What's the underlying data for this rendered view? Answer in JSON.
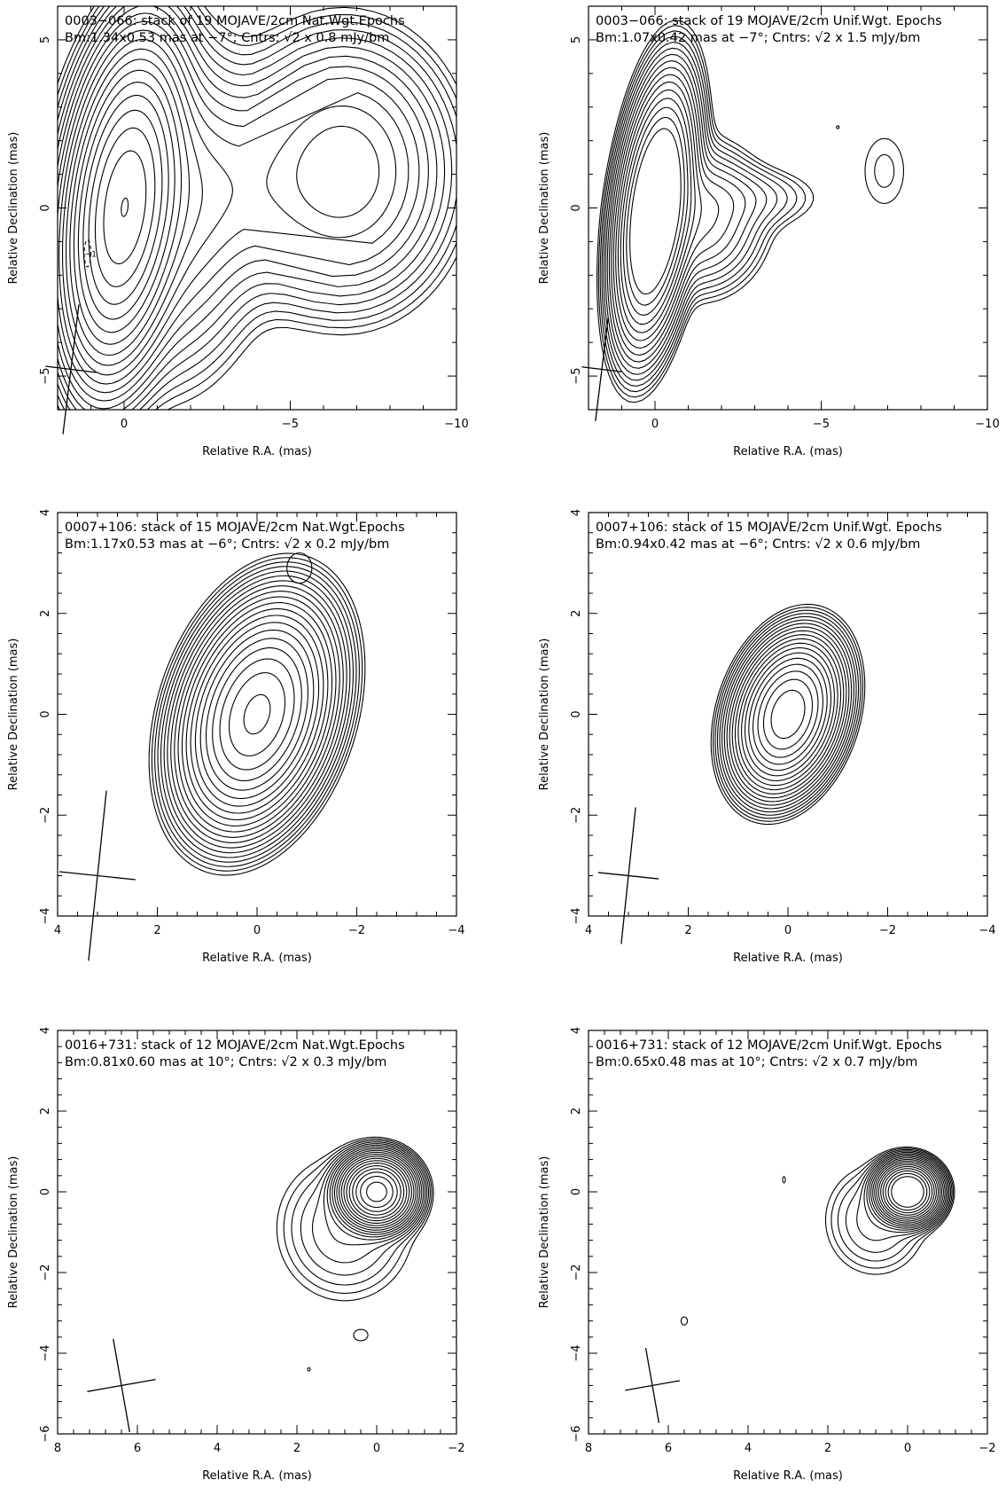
{
  "figure": {
    "panels": [
      {
        "id": "p1",
        "title_line1": "0003−066: stack of 19 MOJAVE/2cm Nat.Wgt.Epochs",
        "title_line2": "Bm:1.34x0.53 mas at −7°; Cntrs: √2 x 0.8 mJy/bm"
      },
      {
        "id": "p2",
        "title_line1": "0003−066: stack of 19 MOJAVE/2cm Unif.Wgt. Epochs",
        "title_line2": "Bm:1.07x0.42 mas at −7°; Cntrs: √2 x 1.5 mJy/bm"
      },
      {
        "id": "p3",
        "title_line1": "0007+106: stack of 15 MOJAVE/2cm Nat.Wgt.Epochs",
        "title_line2": "Bm:1.17x0.53 mas at −6°; Cntrs: √2 x 0.2 mJy/bm"
      },
      {
        "id": "p4",
        "title_line1": "0007+106: stack of 15 MOJAVE/2cm Unif.Wgt. Epochs",
        "title_line2": "Bm:0.94x0.42 mas at −6°; Cntrs: √2 x 0.6 mJy/bm"
      },
      {
        "id": "p5",
        "title_line1": "0016+731: stack of 12 MOJAVE/2cm Nat.Wgt.Epochs",
        "title_line2": "Bm:0.81x0.60 mas at 10°; Cntrs: √2 x 0.3 mJy/bm"
      },
      {
        "id": "p6",
        "title_line1": "0016+731: stack of 12 MOJAVE/2cm Unif.Wgt. Epochs",
        "title_line2": "Bm:0.65x0.48 mas at 10°; Cntrs: √2 x 0.7 mJy/bm"
      }
    ]
  },
  "chart_data": [
    {
      "type": "contour",
      "title": "0003−066: stack of 19 MOJAVE/2cm Nat.Wgt.Epochs",
      "subtitle": "Bm:1.34x0.53 mas at −7°; Cntrs: √2 x 0.8 mJy/bm",
      "xlabel": "Relative R.A. (mas)",
      "ylabel": "Relative Declination (mas)",
      "xlim": [
        2,
        -10
      ],
      "ylim": [
        -6,
        6
      ],
      "xticks": [
        0,
        -5,
        -10
      ],
      "xtick_labels": [
        "0",
        "−5",
        "−10"
      ],
      "yticks": [
        -5,
        0,
        5
      ],
      "ytick_labels": [
        "−5",
        "0",
        "5"
      ],
      "beam": {
        "major_mas": 1.34,
        "minor_mas": 0.53,
        "pa_deg": -7,
        "x": 1.6,
        "y": -4.8
      },
      "contour_base_mJy_per_beam": 0.8,
      "contour_factor": "√2",
      "components": [
        {
          "x": 0,
          "y": 0,
          "a": 0.7,
          "b": 2.0,
          "pa": -7,
          "peak": 700
        },
        {
          "x": -1.1,
          "y": 0.1,
          "a": 1.3,
          "b": 2.2,
          "pa": 0,
          "peak": 40
        },
        {
          "x": -2.6,
          "y": 0.5,
          "a": 1.5,
          "b": 1.5,
          "pa": 0,
          "peak": 12
        },
        {
          "x": -4.0,
          "y": 0.6,
          "a": 1.5,
          "b": 1.4,
          "pa": 0,
          "peak": 9
        },
        {
          "x": -6.6,
          "y": 1.1,
          "a": 1.4,
          "b": 1.7,
          "pa": 0,
          "peak": 60
        }
      ],
      "n_levels": 20,
      "extra_contours": [
        {
          "x": 1.1,
          "y": -1.35,
          "rx": 0.1,
          "ry": 0.4,
          "dashed": true,
          "label": "−1"
        }
      ]
    },
    {
      "type": "contour",
      "title": "0003−066: stack of 19 MOJAVE/2cm Unif.Wgt. Epochs",
      "subtitle": "Bm:1.07x0.42 mas at −7°; Cntrs: √2 x 1.5 mJy/bm",
      "xlabel": "Relative R.A. (mas)",
      "ylabel": "Relative Declination (mas)",
      "xlim": [
        2,
        -10
      ],
      "ylim": [
        -6,
        6
      ],
      "xticks": [
        0,
        -5,
        -10
      ],
      "xtick_labels": [
        "0",
        "−5",
        "−10"
      ],
      "yticks": [
        -5,
        0,
        5
      ],
      "ytick_labels": [
        "−5",
        "0",
        "5"
      ],
      "beam": {
        "major_mas": 1.07,
        "minor_mas": 0.42,
        "pa_deg": -7,
        "x": 1.6,
        "y": -4.8
      },
      "contour_base_mJy_per_beam": 1.5,
      "contour_factor": "√2",
      "components": [
        {
          "x": 0,
          "y": -0.1,
          "a": 0.45,
          "b": 1.6,
          "pa": -7,
          "peak": 600
        },
        {
          "x": -1.3,
          "y": -0.3,
          "a": 0.9,
          "b": 1.0,
          "pa": 0,
          "peak": 25
        },
        {
          "x": -2.6,
          "y": 0.3,
          "a": 1.2,
          "b": 0.5,
          "pa": 0,
          "peak": 5
        },
        {
          "x": -6.9,
          "y": 1.1,
          "a": 0.6,
          "b": 1.0,
          "pa": 0,
          "peak": 9
        }
      ],
      "n_levels": 16,
      "extra_contours": [
        {
          "x": -5.5,
          "y": 2.4,
          "rx": 0.04,
          "ry": 0.04,
          "dashed": false
        }
      ]
    },
    {
      "type": "contour",
      "title": "0007+106: stack of 15 MOJAVE/2cm Nat.Wgt.Epochs",
      "subtitle": "Bm:1.17x0.53 mas at −6°; Cntrs: √2 x 0.2 mJy/bm",
      "xlabel": "Relative R.A. (mas)",
      "ylabel": "Relative Declination (mas)",
      "xlim": [
        4,
        -4
      ],
      "ylim": [
        -4,
        4
      ],
      "xticks": [
        4,
        2,
        0,
        -2,
        -4
      ],
      "xtick_labels": [
        "4",
        "2",
        "0",
        "−2",
        "−4"
      ],
      "yticks": [
        -4,
        -2,
        0,
        2,
        4
      ],
      "ytick_labels": [
        "−4",
        "−2",
        "0",
        "2",
        "4"
      ],
      "beam": {
        "major_mas": 1.17,
        "minor_mas": 0.53,
        "pa_deg": -6,
        "x": 3.2,
        "y": -3.2
      },
      "contour_base_mJy_per_beam": 0.2,
      "contour_factor": "√2",
      "components": [
        {
          "x": 0,
          "y": 0,
          "a": 0.55,
          "b": 0.9,
          "pa": -18,
          "peak": 800
        }
      ],
      "n_levels": 24,
      "extra_contours": [
        {
          "x": -0.85,
          "y": 2.9,
          "rx": 0.25,
          "ry": 0.3,
          "dashed": false
        }
      ]
    },
    {
      "type": "contour",
      "title": "0007+106: stack of 15 MOJAVE/2cm Unif.Wgt. Epochs",
      "subtitle": "Bm:0.94x0.42 mas at −6°; Cntrs: √2 x 0.6 mJy/bm",
      "xlabel": "Relative R.A. (mas)",
      "ylabel": "Relative Declination (mas)",
      "xlim": [
        4,
        -4
      ],
      "ylim": [
        -4,
        4
      ],
      "xticks": [
        4,
        2,
        0,
        -2,
        -4
      ],
      "xtick_labels": [
        "4",
        "2",
        "0",
        "−2",
        "−4"
      ],
      "yticks": [
        -4,
        -2,
        0,
        2,
        4
      ],
      "ytick_labels": [
        "−4",
        "−2",
        "0",
        "2",
        "4"
      ],
      "beam": {
        "major_mas": 0.94,
        "minor_mas": 0.42,
        "pa_deg": -6,
        "x": 3.2,
        "y": -3.2
      },
      "contour_base_mJy_per_beam": 0.6,
      "contour_factor": "√2",
      "components": [
        {
          "x": 0,
          "y": 0,
          "a": 0.4,
          "b": 0.62,
          "pa": -18,
          "peak": 700
        }
      ],
      "n_levels": 20,
      "extra_contours": []
    },
    {
      "type": "contour",
      "title": "0016+731: stack of 12 MOJAVE/2cm Nat.Wgt.Epochs",
      "subtitle": "Bm:0.81x0.60 mas at 10°; Cntrs: √2 x 0.3 mJy/bm",
      "xlabel": "Relative R.A. (mas)",
      "ylabel": "Relative Declination (mas)",
      "xlim": [
        8,
        -2
      ],
      "ylim": [
        -6,
        4
      ],
      "xticks": [
        8,
        6,
        4,
        2,
        0,
        -2
      ],
      "xtick_labels": [
        "8",
        "6",
        "4",
        "2",
        "0",
        "−2"
      ],
      "yticks": [
        -6,
        -4,
        -2,
        0,
        2,
        4
      ],
      "ytick_labels": [
        "−6",
        "−4",
        "−2",
        "0",
        "2",
        "4"
      ],
      "beam": {
        "major_mas": 0.81,
        "minor_mas": 0.6,
        "pa_deg": 10,
        "x": 6.4,
        "y": -4.8
      },
      "contour_base_mJy_per_beam": 0.3,
      "contour_factor": "√2",
      "components": [
        {
          "x": 0,
          "y": 0,
          "a": 0.38,
          "b": 0.36,
          "pa": 0,
          "peak": 900
        },
        {
          "x": 0.8,
          "y": -0.9,
          "a": 0.9,
          "b": 0.95,
          "pa": 0,
          "peak": 6
        }
      ],
      "n_levels": 22,
      "extra_contours": [
        {
          "x": 0.4,
          "y": -3.55,
          "rx": 0.18,
          "ry": 0.14,
          "dashed": false
        },
        {
          "x": 1.7,
          "y": -4.4,
          "rx": 0.02,
          "ry": 0.04,
          "dashed": false
        }
      ]
    },
    {
      "type": "contour",
      "title": "0016+731: stack of 12 MOJAVE/2cm Unif.Wgt. Epochs",
      "subtitle": "Bm:0.65x0.48 mas at 10°; Cntrs: √2 x 0.7 mJy/bm",
      "xlabel": "Relative R.A. (mas)",
      "ylabel": "Relative Declination (mas)",
      "xlim": [
        8,
        -2
      ],
      "ylim": [
        -6,
        4
      ],
      "xticks": [
        8,
        6,
        4,
        2,
        0,
        -2
      ],
      "xtick_labels": [
        "8",
        "6",
        "4",
        "2",
        "0",
        "−2"
      ],
      "yticks": [
        -6,
        -4,
        -2,
        0,
        2,
        4
      ],
      "ytick_labels": [
        "−6",
        "−4",
        "−2",
        "0",
        "2",
        "4"
      ],
      "beam": {
        "major_mas": 0.65,
        "minor_mas": 0.48,
        "pa_deg": 10,
        "x": 6.4,
        "y": -4.8
      },
      "contour_base_mJy_per_beam": 0.7,
      "contour_factor": "√2",
      "components": [
        {
          "x": 0,
          "y": 0,
          "a": 0.32,
          "b": 0.3,
          "pa": 0,
          "peak": 800
        },
        {
          "x": 0.8,
          "y": -0.7,
          "a": 0.7,
          "b": 0.75,
          "pa": 0,
          "peak": 5
        }
      ],
      "n_levels": 18,
      "extra_contours": [
        {
          "x": 3.1,
          "y": 0.3,
          "rx": 0.03,
          "ry": 0.08,
          "dashed": false
        },
        {
          "x": 5.6,
          "y": -3.2,
          "rx": 0.08,
          "ry": 0.1,
          "dashed": false
        }
      ]
    }
  ]
}
